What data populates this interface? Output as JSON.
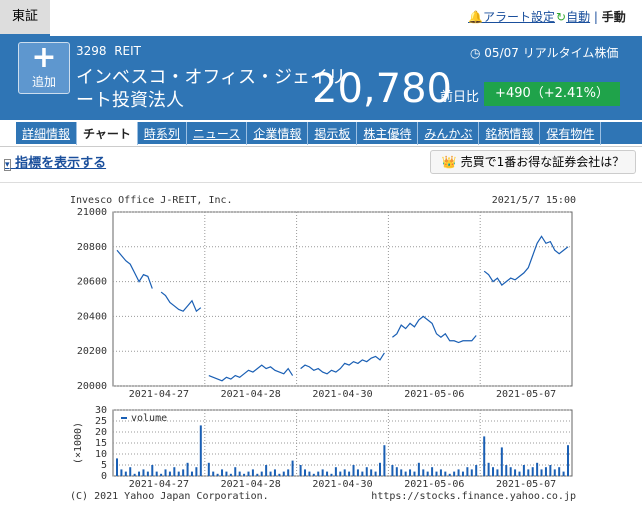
{
  "header": {
    "market": "東証",
    "alert": "アラート設定",
    "auto": "自動",
    "manual": "手動",
    "add": "追加",
    "code": "3298",
    "category": "REIT",
    "time": "05/07 リアルタイム株価",
    "name_lines": [
      "インベスコ・オフィス・ジェイリ",
      "ート投資法人"
    ],
    "price": "20,780",
    "change_label": "前日比",
    "change": "+490（+2.41%）"
  },
  "tabs": [
    "詳細情報",
    "チャート",
    "時系列",
    "ニュース",
    "企業情報",
    "掲示板",
    "株主優待",
    "みんかぶ",
    "銘柄情報",
    "保有物件"
  ],
  "toolbar": {
    "indicators": "指標を表示する",
    "promo": "売買で1番お得な証券会社は？"
  },
  "chart_info": {
    "company": "Invesco Office J-REIT, Inc.",
    "timestamp": "2021/5/7 15:00",
    "copyright": "(C) 2021 Yahoo Japan Corporation.",
    "url": "https://stocks.finance.yahoo.co.jp"
  },
  "chart_data": [
    {
      "type": "line",
      "color": "#1a5fb4",
      "categories": [
        "2021-04-27",
        "2021-04-28",
        "2021-04-30",
        "2021-05-06",
        "2021-05-07"
      ],
      "values": [
        [
          20780,
          20750,
          20720,
          20700,
          20650,
          20600,
          20640,
          20630,
          20560,
          null,
          20540,
          20520,
          20480,
          20460,
          20440,
          20430,
          20460,
          20490,
          20430,
          20450
        ],
        [
          20060,
          20050,
          20040,
          20030,
          20050,
          20040,
          20060,
          20050,
          20070,
          20090,
          20080,
          20100,
          20120,
          20100,
          20110,
          20090,
          20080,
          20070,
          20100,
          20060
        ],
        [
          20100,
          20120,
          20110,
          20090,
          20100,
          20080,
          20070,
          20090,
          20080,
          20100,
          20130,
          20120,
          20140,
          20130,
          20150,
          20140,
          20160,
          20170,
          20150,
          20190
        ],
        [
          20280,
          20300,
          20350,
          20330,
          20360,
          20340,
          20380,
          20400,
          20380,
          20360,
          20300,
          20280,
          20300,
          20260,
          20260,
          20250,
          20260,
          20260,
          20260,
          20290
        ],
        [
          20660,
          20640,
          20600,
          20620,
          20580,
          20600,
          20620,
          20610,
          20630,
          20650,
          20680,
          20750,
          20820,
          20860,
          20820,
          20830,
          20780,
          20760,
          20780,
          20800
        ]
      ],
      "ylim": [
        20000,
        21000
      ],
      "yticks": [
        20000,
        20200,
        20400,
        20600,
        20800,
        21000
      ],
      "grid": true
    },
    {
      "type": "bar",
      "ylabel": "(×1000)",
      "categories": [
        "2021-04-27",
        "2021-04-28",
        "2021-04-30",
        "2021-05-06",
        "2021-05-07"
      ],
      "series": [
        {
          "name": "volume",
          "color": "#1a5fb4",
          "values": [
            [
              8,
              3,
              2,
              4,
              1,
              2,
              3,
              2,
              5,
              2,
              1,
              3,
              2,
              4,
              2,
              3,
              6,
              2,
              4,
              23
            ],
            [
              6,
              2,
              1,
              3,
              2,
              1,
              4,
              2,
              1,
              2,
              3,
              1,
              2,
              5,
              2,
              3,
              1,
              2,
              3,
              7
            ],
            [
              5,
              3,
              2,
              1,
              2,
              3,
              2,
              1,
              4,
              2,
              3,
              2,
              5,
              3,
              2,
              4,
              3,
              2,
              6,
              14
            ],
            [
              5,
              4,
              3,
              2,
              3,
              2,
              6,
              3,
              2,
              4,
              2,
              3,
              2,
              1,
              2,
              3,
              2,
              4,
              3,
              5
            ],
            [
              18,
              6,
              4,
              3,
              13,
              5,
              4,
              3,
              2,
              5,
              3,
              4,
              6,
              3,
              4,
              5,
              3,
              4,
              2,
              14
            ]
          ]
        }
      ],
      "ylim": [
        0,
        30
      ],
      "yticks": [
        0,
        5,
        10,
        15,
        20,
        25,
        30
      ],
      "grid": true
    }
  ]
}
